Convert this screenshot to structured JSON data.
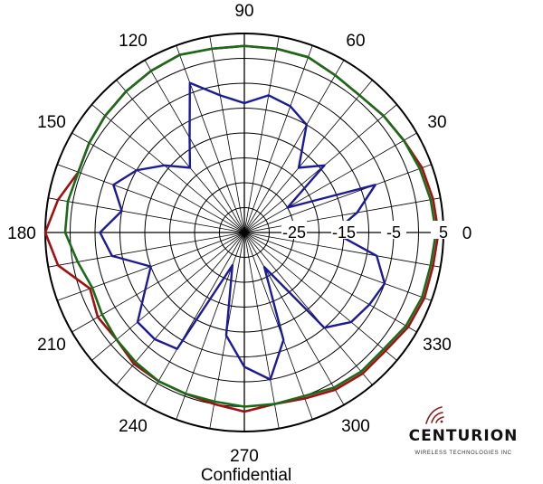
{
  "chart_data": {
    "type": "polar-line",
    "angular_ticks": [
      "90",
      "60",
      "30",
      "0",
      "330",
      "300",
      "270",
      "240",
      "210",
      "180",
      "150",
      "120"
    ],
    "radial_ticks": [
      "-25",
      "-15",
      "-5",
      "5"
    ],
    "radial_range": [
      -35,
      5
    ],
    "grid": true,
    "colors": {
      "red": "#a01010",
      "green": "#1a6a1a",
      "blue": "#1a1a9a",
      "grid": "#000000"
    },
    "series": [
      {
        "color": "red",
        "angles": [
          0,
          10,
          20,
          30,
          40,
          50,
          60,
          70,
          80,
          90,
          100,
          110,
          120,
          130,
          140,
          150,
          160,
          170,
          180,
          190,
          200,
          210,
          220,
          230,
          240,
          250,
          260,
          270,
          280,
          290,
          300,
          310,
          320,
          330,
          340,
          350
        ],
        "values": [
          4.0,
          3.5,
          3.0,
          2.0,
          1.5,
          1.0,
          1.5,
          2.5,
          2.5,
          2.5,
          2.5,
          3.0,
          2.5,
          2.0,
          1.5,
          1.0,
          0.5,
          3.0,
          5.0,
          3.0,
          -2.0,
          -1.0,
          -1.5,
          -0.5,
          -0.5,
          -0.5,
          0.0,
          1.0,
          0.0,
          0.5,
          1.5,
          2.0,
          2.0,
          3.0,
          3.5,
          3.5
        ]
      },
      {
        "color": "green",
        "angles": [
          0,
          10,
          20,
          30,
          40,
          50,
          60,
          70,
          80,
          90,
          100,
          110,
          120,
          130,
          140,
          150,
          160,
          170,
          180,
          190,
          200,
          210,
          220,
          230,
          240,
          250,
          260,
          270,
          280,
          290,
          300,
          310,
          320,
          330,
          340,
          350
        ],
        "values": [
          3.5,
          3.0,
          2.5,
          2.0,
          1.5,
          1.0,
          1.5,
          2.5,
          2.5,
          2.5,
          2.5,
          3.0,
          2.5,
          2.0,
          1.5,
          1.0,
          0.5,
          1.0,
          1.0,
          -1.0,
          -2.5,
          -2.0,
          -1.5,
          -1.0,
          -0.5,
          -0.5,
          -0.5,
          0.0,
          0.0,
          0.0,
          1.0,
          1.5,
          1.5,
          2.5,
          3.0,
          3.0
        ]
      },
      {
        "color": "blue",
        "angles": [
          0,
          10,
          20,
          30,
          40,
          50,
          60,
          70,
          80,
          90,
          100,
          110,
          120,
          130,
          140,
          150,
          160,
          170,
          180,
          190,
          200,
          210,
          220,
          230,
          240,
          250,
          260,
          270,
          280,
          290,
          300,
          310,
          320,
          330,
          340,
          350
        ],
        "values": [
          -17,
          -12,
          -7,
          -25,
          -14,
          -18,
          -10,
          -8,
          -7,
          -9,
          -7,
          -3,
          -13,
          -18,
          -14,
          -10,
          -7,
          -10,
          -6,
          -8,
          -15,
          -12,
          -7,
          -7,
          -8,
          -28,
          -14,
          -8,
          -5,
          -12,
          -27,
          -10,
          -7,
          -6,
          -5,
          -8
        ]
      }
    ]
  },
  "footer": {
    "caption": "Confidential"
  },
  "logo": {
    "name": "CENTURION",
    "subtitle": "WIRELESS TECHNOLOGIES INC"
  }
}
